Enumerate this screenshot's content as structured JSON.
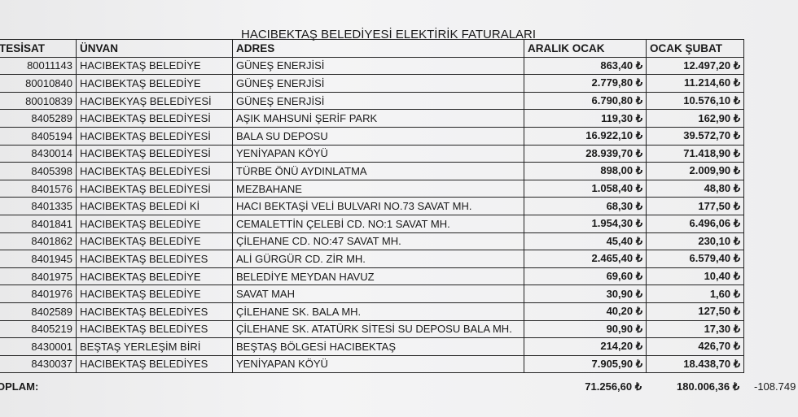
{
  "header": {
    "title": "HACIBEKTAŞ BELEDİYESİ ELEKTİRİK FATURALARI"
  },
  "table": {
    "columns": [
      "TESİSAT",
      "ÜNVAN",
      "ADRES",
      "ARALIK OCAK",
      "OCAK ŞUBAT"
    ],
    "rows": [
      [
        "80011143",
        "HACIBEKTAŞ BELEDİYE",
        "GÜNEŞ ENERJİSİ",
        "863,40 ₺",
        "12.497,20 ₺"
      ],
      [
        "80010840",
        "HACIBEKTAŞ BELEDİYE",
        "GÜNEŞ ENERJİSİ",
        "2.779,80 ₺",
        "11.214,60 ₺"
      ],
      [
        "80010839",
        "HACIBEKYAŞ BELEDİYESİ",
        "GÜNEŞ ENERJİSİ",
        "6.790,80 ₺",
        "10.576,10 ₺"
      ],
      [
        "8405289",
        "HACIBEKTAŞ BELEDİYESİ",
        "AŞIK MAHSUNİ ŞERİF PARK",
        "119,30 ₺",
        "162,90 ₺"
      ],
      [
        "8405194",
        "HACIBEKTAŞ BELEDİYESİ",
        "BALA SU DEPOSU",
        "16.922,10 ₺",
        "39.572,70 ₺"
      ],
      [
        "8430014",
        "HACIBEKTAŞ BELEDİYESİ",
        "YENİYAPAN KÖYÜ",
        "28.939,70 ₺",
        "71.418,90 ₺"
      ],
      [
        "8405398",
        "HACIBEKTAŞ BELEDİYESİ",
        "TÜRBE ÖNÜ AYDINLATMA",
        "898,00 ₺",
        "2.009,90 ₺"
      ],
      [
        "8401576",
        "HACIBEKTAŞ BELEDİYESİ",
        "MEZBAHANE",
        "1.058,40 ₺",
        "48,80 ₺"
      ],
      [
        "8401335",
        "HACIBEKTAŞ BELEDİ Kİ",
        "HACI BEKTAŞİ VELİ BULVARI NO.73 SAVAT MH.",
        "68,30 ₺",
        "177,50 ₺"
      ],
      [
        "8401841",
        "HACIBEKTAŞ BELEDİYE",
        "CEMALETTİN ÇELEBİ CD. NO:1 SAVAT MH.",
        "1.954,30 ₺",
        "6.496,06 ₺"
      ],
      [
        "8401862",
        "HACIBEKTAŞ BELEDİYE",
        "ÇİLEHANE CD. NO:47 SAVAT MH.",
        "45,40 ₺",
        "230,10 ₺"
      ],
      [
        "8401945",
        "HACIBEKTAŞ BELEDİYES",
        "ALİ GÜRGÜR CD. ZİR MH.",
        "2.465,40 ₺",
        "6.579,40 ₺"
      ],
      [
        "8401975",
        "HACIBEKTAŞ BELEDİYE",
        "BELEDİYE MEYDAN HAVUZ",
        "69,60 ₺",
        "10,40 ₺"
      ],
      [
        "8401976",
        "HACIBEKTAŞ BELEDİYE",
        "SAVAT MAH",
        "30,90 ₺",
        "1,60 ₺"
      ],
      [
        "8402589",
        "HACIBEKTAŞ BELEDİYES",
        "ÇİLEHANE SK. BALA MH.",
        "40,20 ₺",
        "127,50 ₺"
      ],
      [
        "8405219",
        "HACIBEKTAŞ BELEDİYES",
        "ÇİLEHANE SK. ATATÜRK SİTESİ SU DEPOSU BALA MH.",
        "90,90 ₺",
        "17,30 ₺"
      ],
      [
        "8430001",
        "BEŞTAŞ YERLEŞİM BİRİ",
        "BEŞTAŞ BÖLGESİ HACIBEKTAŞ",
        "214,20 ₺",
        "426,70 ₺"
      ],
      [
        "8430037",
        "HACIBEKTAŞ BELEDİYES",
        "YENİYAPAN KÖYÜ",
        "7.905,90 ₺",
        "18.438,70 ₺"
      ]
    ]
  },
  "totals": {
    "label": "OPLAM:",
    "aralik_ocak": "71.256,60 ₺",
    "ocak_subat": "180.006,36 ₺",
    "difference": "-108.749"
  }
}
